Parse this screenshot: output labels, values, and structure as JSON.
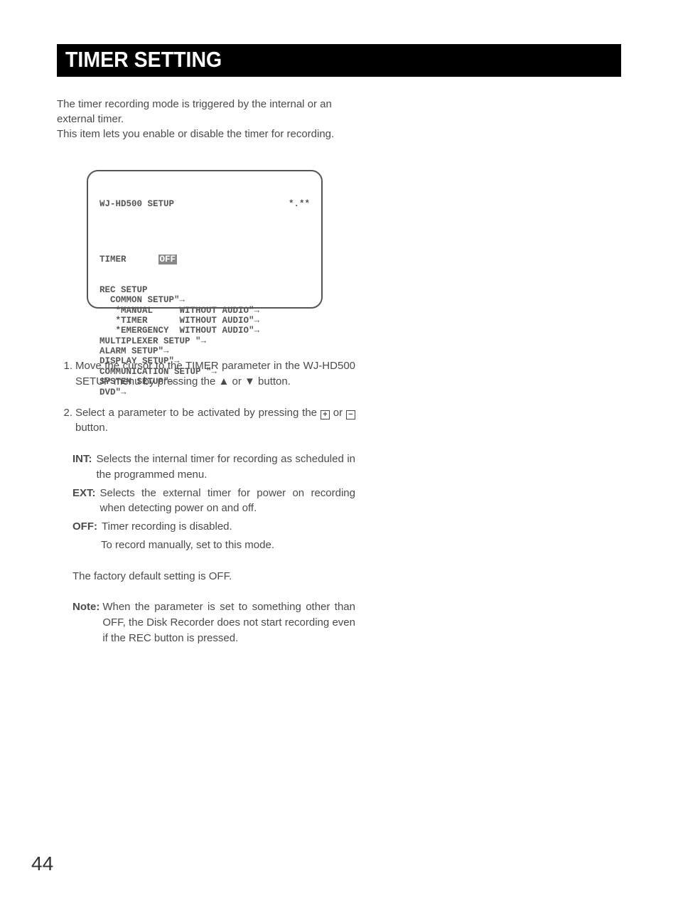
{
  "title_bar": "TIMER SETTING",
  "intro": {
    "line1": "The timer recording mode is triggered by the internal or an external timer.",
    "line2": "This item lets you enable or disable the timer for recording."
  },
  "screen": {
    "header_left": "WJ-HD500 SETUP",
    "header_right": "*.**",
    "timer_label": "TIMER",
    "timer_value": "OFF",
    "lines": [
      "REC SETUP",
      "  COMMON SETUP\"→",
      "   *MANUAL     WITHOUT AUDIO\"→",
      "   *TIMER      WITHOUT AUDIO\"→",
      "   *EMERGENCY  WITHOUT AUDIO\"→",
      "MULTIPLEXER SETUP \"→",
      "ALARM SETUP\"→",
      "DISPLAY SETUP\"→",
      "COMMUNICATION SETUP \"→",
      "SYSTEM SETUP\"→",
      "DVD\"→"
    ]
  },
  "steps": {
    "s1": {
      "num": "1.",
      "text": "Move the cursor to the TIMER parameter in the WJ-HD500 SETUP menu by pressing the ▲ or ▼ button."
    },
    "s2": {
      "num": "2.",
      "text_a": "Select a parameter to be activated by pressing the ",
      "text_b": " or ",
      "text_c": " button.",
      "plus": "+",
      "minus": "−"
    }
  },
  "defs": {
    "int": {
      "label": "INT:",
      "text": "Selects the internal timer for recording as scheduled in the programmed menu."
    },
    "ext": {
      "label": "EXT:",
      "text": "Selects the external timer for power on recording when detecting power on and off."
    },
    "off": {
      "label": "OFF:",
      "text": "Timer recording is disabled.",
      "cont": "To record manually, set to this mode."
    }
  },
  "factory": "The factory default setting is OFF.",
  "note": {
    "label": "Note:",
    "text": "When the parameter is set to something other than OFF, the Disk Recorder does not start recording even if the REC button is pressed."
  },
  "page_number": "44",
  "colors": {
    "text": "#4a4a4a",
    "title_bg": "#000000",
    "title_fg": "#ffffff",
    "screen_border": "#555555",
    "highlight_bg": "#888888",
    "highlight_fg": "#ffffff"
  }
}
